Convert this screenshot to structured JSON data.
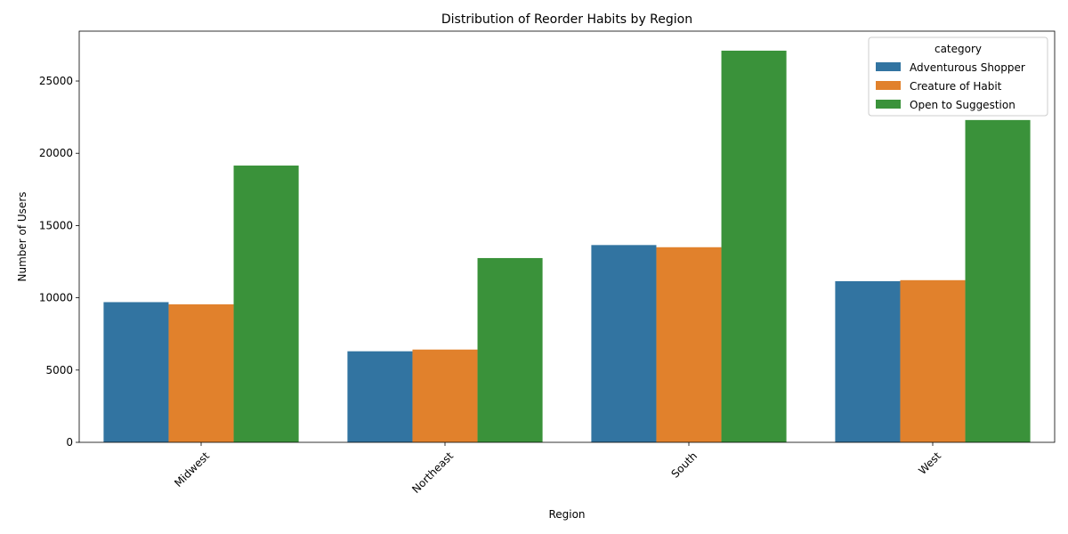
{
  "chart_data": {
    "type": "bar",
    "title": "Distribution of Reorder Habits by Region",
    "xlabel": "Region",
    "ylabel": "Number of Users",
    "categories": [
      "Midwest",
      "Northeast",
      "South",
      "West"
    ],
    "series": [
      {
        "name": "Adventurous Shopper",
        "color": "#3274a1",
        "values": [
          9700,
          6300,
          13650,
          11150
        ]
      },
      {
        "name": "Creature of Habit",
        "color": "#e1812c",
        "values": [
          9550,
          6420,
          13500,
          11220
        ]
      },
      {
        "name": "Open to Suggestion",
        "color": "#3a923a",
        "values": [
          19150,
          12750,
          27100,
          22300
        ]
      }
    ],
    "ylim": [
      0,
      28450
    ],
    "yticks": [
      0,
      5000,
      10000,
      15000,
      20000,
      25000
    ],
    "grid": false,
    "legend": {
      "title": "category",
      "placement": "top-right"
    },
    "xtick_rotation": 45
  }
}
